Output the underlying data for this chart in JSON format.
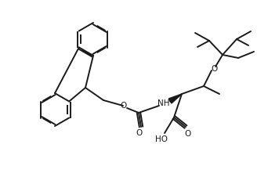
{
  "bg_color": "#ffffff",
  "line_color": "#1a1a1a",
  "line_width": 1.4,
  "fig_width": 3.38,
  "fig_height": 2.31,
  "dpi": 100
}
